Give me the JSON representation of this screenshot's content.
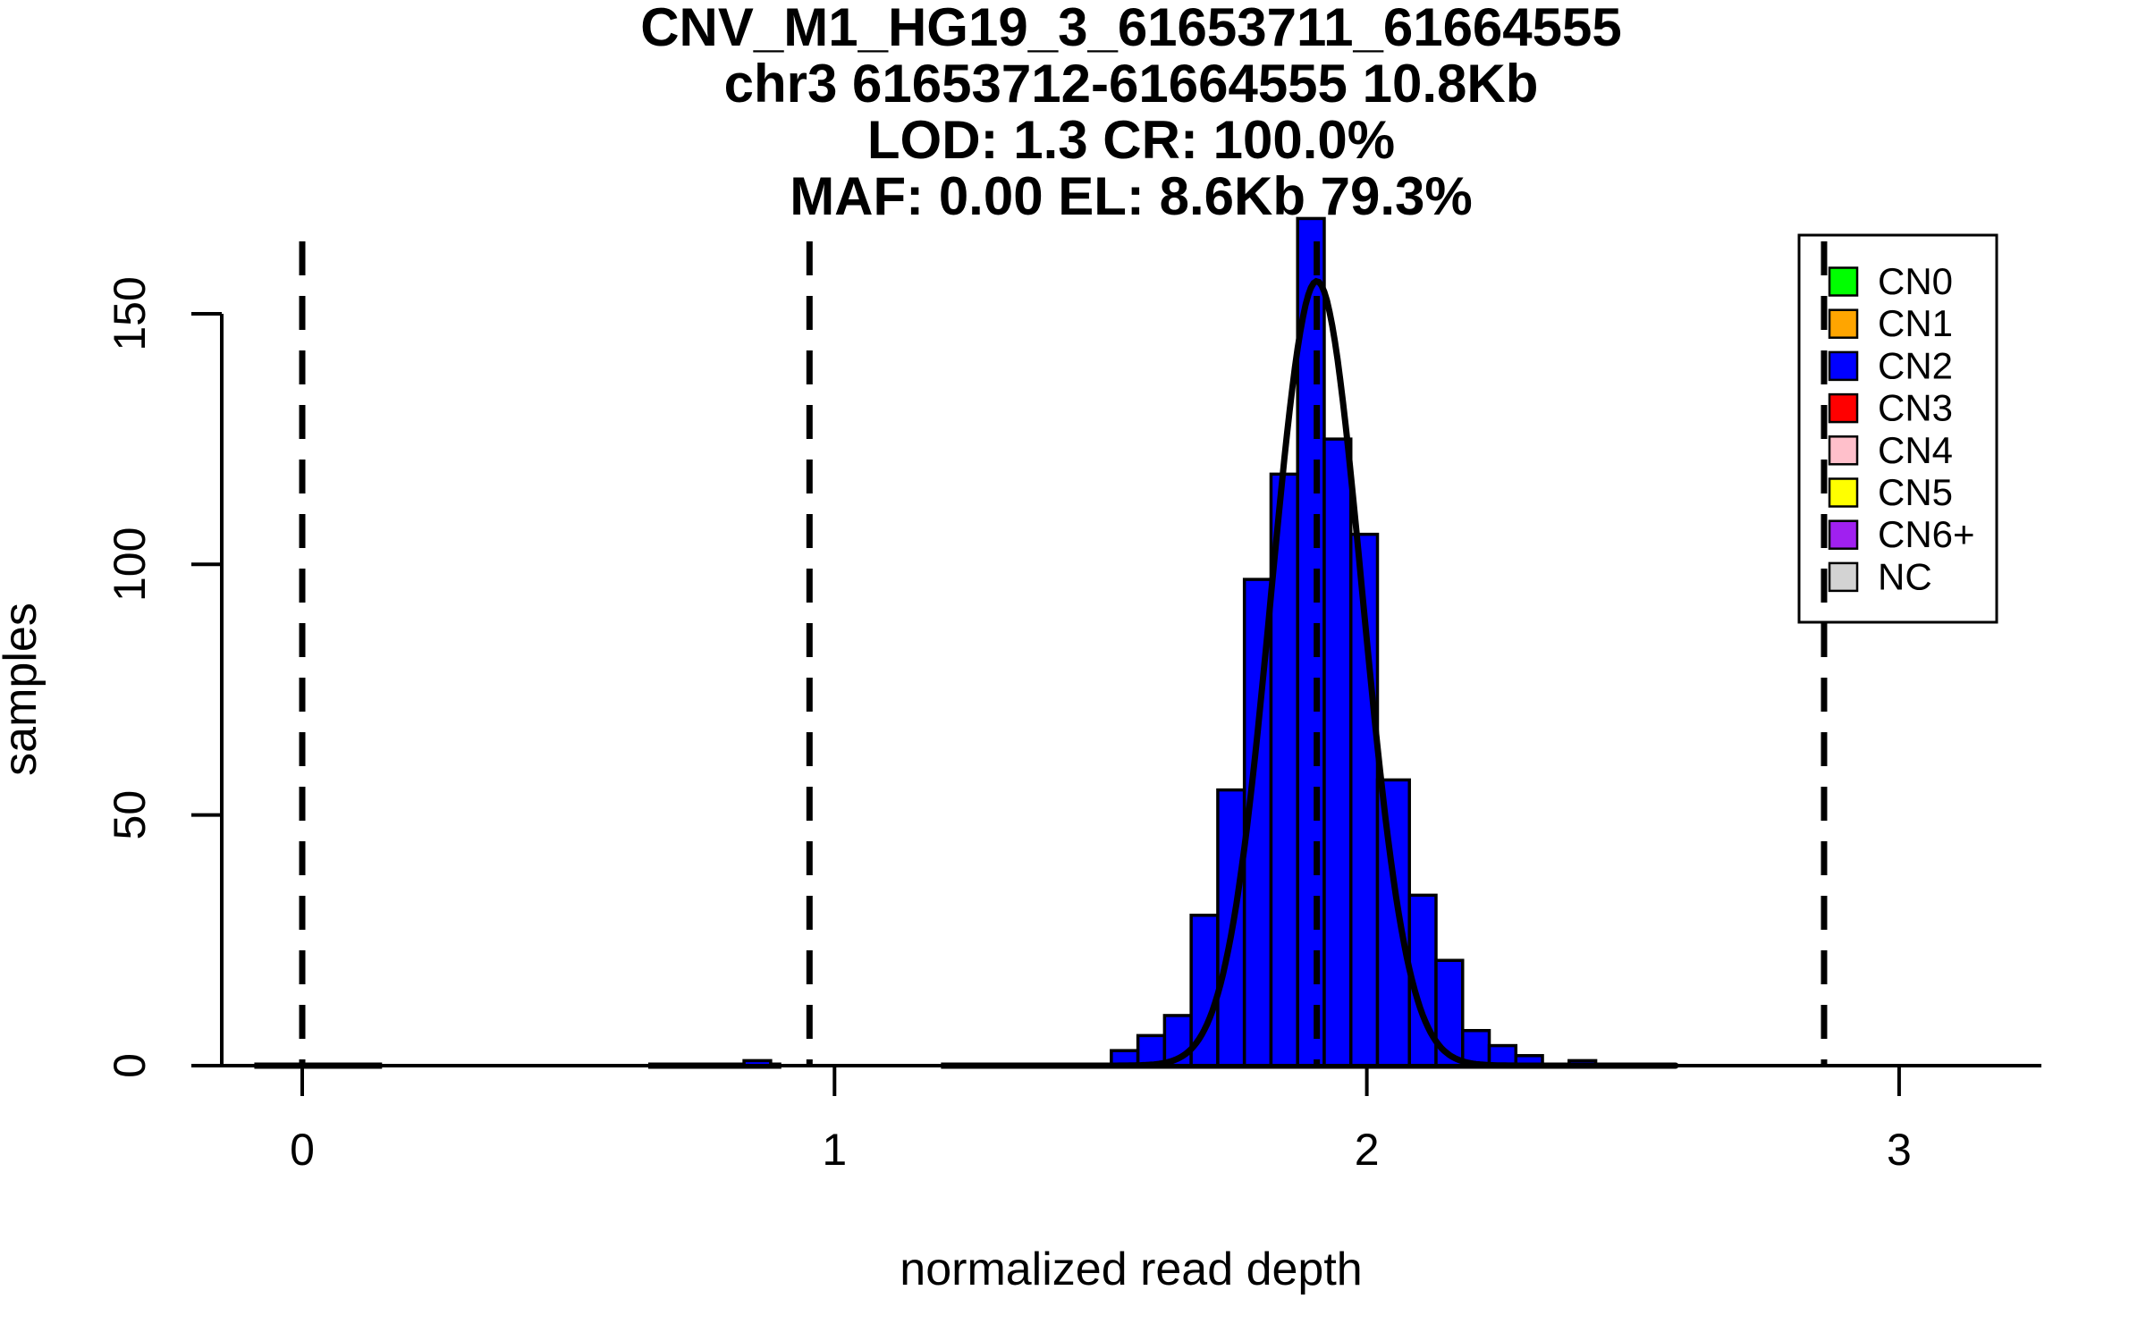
{
  "chart_data": {
    "type": "bar",
    "subtype": "histogram-with-gaussian-fit",
    "titles": [
      "CNV_M1_HG19_3_61653711_61664555",
      "chr3 61653712-61664555 10.8Kb",
      "LOD: 1.3 CR: 100.0%",
      "MAF: 0.00 EL: 8.6Kb 79.3%"
    ],
    "xlabel": "normalized read depth",
    "ylabel": "samples",
    "x_ticks": [
      0,
      1,
      2,
      3
    ],
    "y_ticks": [
      0,
      50,
      100,
      150
    ],
    "xlim": [
      -0.15,
      3.27
    ],
    "ylim": [
      0,
      170
    ],
    "grid": "off",
    "legend_position": "top-right",
    "bar_fill": "#0000ff",
    "bar_stroke": "#000000",
    "curve_color": "#000000",
    "vline_color": "#000000",
    "bins": [
      {
        "x0": 0.83,
        "x1": 0.88,
        "count": 1
      },
      {
        "x0": 1.52,
        "x1": 1.57,
        "count": 3
      },
      {
        "x0": 1.57,
        "x1": 1.62,
        "count": 6
      },
      {
        "x0": 1.62,
        "x1": 1.67,
        "count": 10
      },
      {
        "x0": 1.67,
        "x1": 1.72,
        "count": 30
      },
      {
        "x0": 1.72,
        "x1": 1.77,
        "count": 55
      },
      {
        "x0": 1.77,
        "x1": 1.82,
        "count": 97
      },
      {
        "x0": 1.82,
        "x1": 1.87,
        "count": 118
      },
      {
        "x0": 1.87,
        "x1": 1.92,
        "count": 169
      },
      {
        "x0": 1.92,
        "x1": 1.97,
        "count": 125
      },
      {
        "x0": 1.97,
        "x1": 2.02,
        "count": 106
      },
      {
        "x0": 2.02,
        "x1": 2.08,
        "count": 57
      },
      {
        "x0": 2.08,
        "x1": 2.13,
        "count": 34
      },
      {
        "x0": 2.13,
        "x1": 2.18,
        "count": 21
      },
      {
        "x0": 2.18,
        "x1": 2.23,
        "count": 7
      },
      {
        "x0": 2.23,
        "x1": 2.28,
        "count": 4
      },
      {
        "x0": 2.28,
        "x1": 2.33,
        "count": 2
      },
      {
        "x0": 2.38,
        "x1": 2.43,
        "count": 1
      }
    ],
    "zero_baseline_segments": [
      [
        -0.09,
        0.15
      ],
      [
        0.65,
        0.9
      ],
      [
        1.2,
        2.46
      ]
    ],
    "fit_curve": {
      "shape": "gaussian",
      "mean": 1.906,
      "sd": 0.085,
      "peak": 156.5,
      "draw_range": [
        1.25,
        2.58
      ]
    },
    "guide_lines": {
      "style": "dashed",
      "values": [
        0,
        0.953,
        1.906,
        2.859
      ]
    },
    "legend": {
      "items": [
        {
          "label": "CN0",
          "color": "#00ff00"
        },
        {
          "label": "CN1",
          "color": "#ffa500"
        },
        {
          "label": "CN2",
          "color": "#0000ff"
        },
        {
          "label": "CN3",
          "color": "#ff0000"
        },
        {
          "label": "CN4",
          "color": "#ffc0cb"
        },
        {
          "label": "CN5",
          "color": "#ffff00"
        },
        {
          "label": "CN6+",
          "color": "#a020f0"
        },
        {
          "label": "NC",
          "color": "#d3d3d3"
        }
      ]
    }
  }
}
